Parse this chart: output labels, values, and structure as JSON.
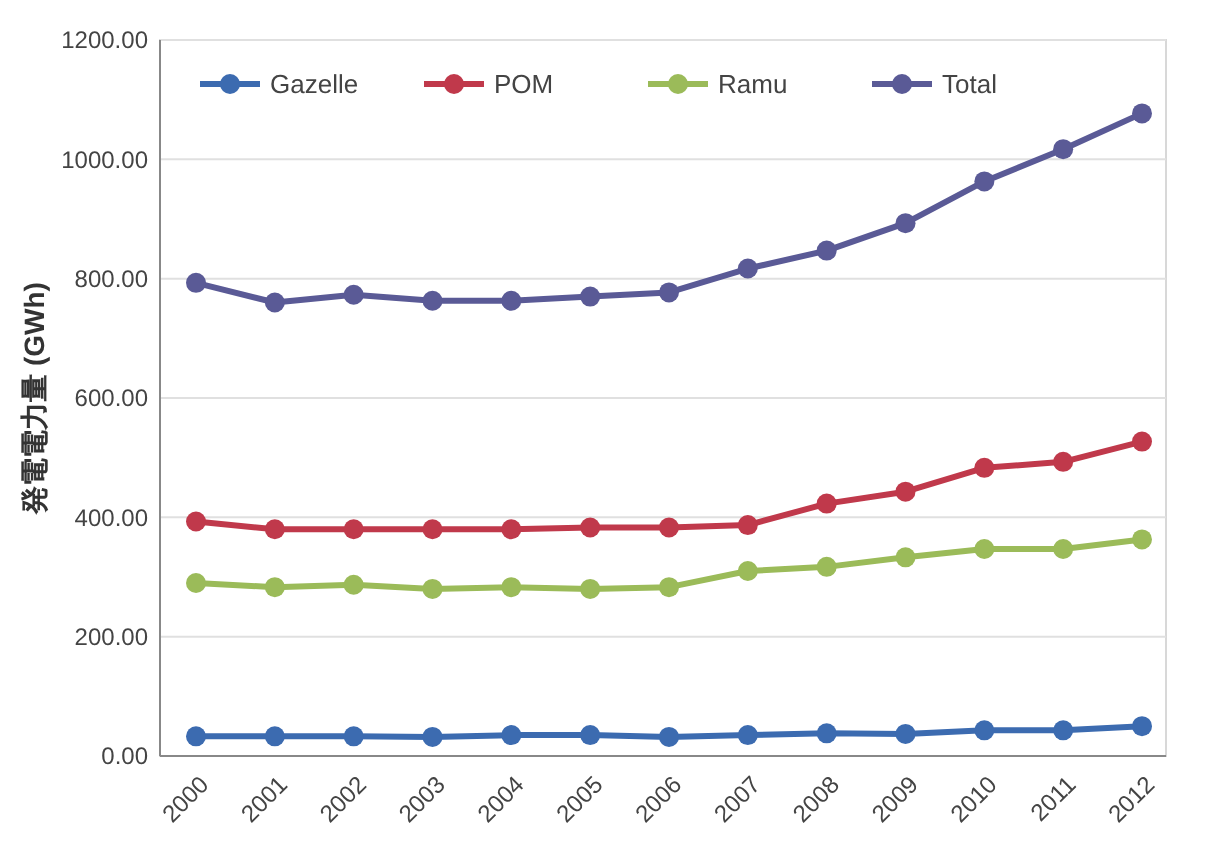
{
  "chart_data": {
    "type": "line",
    "ylabel": "発電電力量 (GWh)",
    "categories": [
      "2000",
      "2001",
      "2002",
      "2003",
      "2004",
      "2005",
      "2006",
      "2007",
      "2008",
      "2009",
      "2010",
      "2011",
      "2012"
    ],
    "series": [
      {
        "name": "Gazelle",
        "color": "#3c6bb0",
        "values": [
          33,
          33,
          33,
          32,
          35,
          35,
          32,
          35,
          38,
          37,
          43,
          43,
          50
        ]
      },
      {
        "name": "POM",
        "color": "#c0394b",
        "values": [
          393,
          380,
          380,
          380,
          380,
          383,
          383,
          387,
          423,
          443,
          483,
          493,
          527
        ]
      },
      {
        "name": "Ramu",
        "color": "#9bbb59",
        "values": [
          290,
          283,
          287,
          280,
          283,
          280,
          283,
          310,
          317,
          333,
          347,
          347,
          363
        ]
      },
      {
        "name": "Total",
        "color": "#5a5a96",
        "values": [
          793,
          760,
          773,
          763,
          763,
          770,
          777,
          817,
          847,
          893,
          963,
          1017,
          1077
        ]
      }
    ],
    "ylim": [
      0,
      1200
    ],
    "yticks": [
      {
        "value": 0,
        "label": "0.00"
      },
      {
        "value": 200,
        "label": "200.00"
      },
      {
        "value": 400,
        "label": "400.00"
      },
      {
        "value": 600,
        "label": "600.00"
      },
      {
        "value": 800,
        "label": "800.00"
      },
      {
        "value": 1000,
        "label": "1000.00"
      },
      {
        "value": 1200,
        "label": "1200.00"
      }
    ],
    "grid": "y",
    "legend": "top",
    "marker": "circle",
    "line_style": "solid"
  }
}
